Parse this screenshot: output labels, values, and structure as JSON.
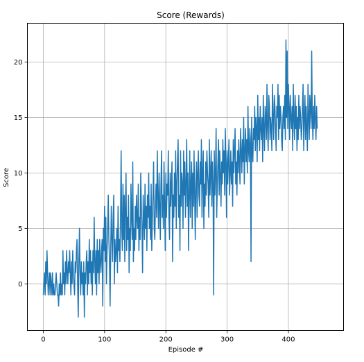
{
  "chart_data": {
    "type": "line",
    "title": "Score (Rewards)",
    "xlabel": "Episode #",
    "ylabel": "Score",
    "xlim": [
      -26,
      490
    ],
    "ylim": [
      -4.2,
      23.5
    ],
    "grid": true,
    "xticks": [
      0,
      100,
      200,
      300,
      400
    ],
    "yticks": [
      0,
      5,
      10,
      15,
      20
    ],
    "xtick_labels": [
      "0",
      "100",
      "200",
      "300",
      "400"
    ],
    "ytick_labels": [
      "0",
      "5",
      "10",
      "15",
      "20"
    ],
    "series_color": "#1f77b4",
    "series": [
      {
        "values": [
          -1,
          0,
          1,
          -1,
          2,
          0,
          3,
          1,
          -1,
          0,
          1,
          -1,
          1,
          0,
          -1,
          1,
          -1,
          0,
          -1,
          -1,
          0,
          1,
          0,
          -1,
          -1,
          -2,
          0,
          -1,
          1,
          -1,
          0,
          -1,
          3,
          0,
          1,
          -1,
          2,
          0,
          3,
          1,
          0,
          2,
          1,
          3,
          1,
          -1,
          2,
          0,
          3,
          1,
          0,
          -1,
          2,
          1,
          3,
          4,
          0,
          -3,
          2,
          5,
          1,
          -1,
          2,
          0,
          1,
          -1,
          2,
          -3,
          1,
          0,
          2,
          3,
          -1,
          2,
          0,
          4,
          1,
          3,
          0,
          2,
          -1,
          3,
          1,
          6,
          2,
          0,
          3,
          -1,
          4,
          1,
          3,
          0,
          4,
          2,
          1,
          3,
          4,
          -2,
          5,
          3,
          7,
          2,
          6,
          0,
          3,
          5,
          8,
          4,
          2,
          -2,
          3,
          7,
          4,
          2,
          6,
          8,
          0,
          4,
          2,
          3,
          5,
          1,
          7,
          3,
          4,
          2,
          6,
          12,
          5,
          3,
          9,
          4,
          8,
          2,
          7,
          10,
          3,
          6,
          4,
          8,
          1,
          5,
          3,
          9,
          6,
          4,
          11,
          2,
          5,
          3,
          7,
          4,
          8,
          6,
          5,
          9,
          3,
          6,
          4,
          10,
          7,
          5,
          1,
          8,
          6,
          4,
          9,
          5,
          7,
          3,
          8,
          6,
          10,
          5,
          7,
          4,
          9,
          3,
          6,
          8,
          11,
          5,
          4,
          7,
          9,
          6,
          12,
          8,
          5,
          10,
          7,
          4,
          9,
          12,
          6,
          8,
          5,
          11,
          7,
          3,
          10,
          6,
          9,
          8,
          12,
          6,
          4,
          10,
          7,
          9,
          11,
          2,
          8,
          6,
          10,
          7,
          12,
          5,
          9,
          11,
          13,
          6,
          8,
          3,
          12,
          7,
          10,
          9,
          5,
          12,
          8,
          11,
          6,
          9,
          13,
          7,
          10,
          3,
          8,
          12,
          6,
          9,
          11,
          5,
          10,
          7,
          12,
          8,
          4,
          9,
          11,
          6,
          10,
          12,
          8,
          7,
          11,
          9,
          13,
          6,
          10,
          12,
          5,
          9,
          7,
          11,
          8,
          12,
          10,
          9,
          6,
          13,
          8,
          10,
          12,
          7,
          11,
          9,
          -1,
          12,
          8,
          10,
          14,
          6,
          9,
          11,
          13,
          8,
          12,
          10,
          7,
          11,
          9,
          13,
          10,
          12,
          8,
          14,
          11,
          6,
          12,
          9,
          11,
          13,
          8,
          10,
          12,
          9,
          11,
          7,
          13,
          10,
          12,
          14,
          9,
          11,
          8,
          12,
          10,
          13,
          11,
          9,
          14,
          12,
          10,
          13,
          11,
          15,
          9,
          12,
          14,
          11,
          13,
          10,
          16,
          12,
          11,
          14,
          13,
          2,
          15,
          12,
          11,
          14,
          13,
          16,
          12,
          15,
          14,
          11,
          17,
          13,
          15,
          12,
          16,
          14,
          13,
          15,
          11,
          17,
          14,
          12,
          16,
          15,
          13,
          18,
          14,
          12,
          17,
          16,
          13,
          15,
          14,
          12,
          18,
          15,
          13,
          17,
          16,
          14,
          12,
          16,
          15,
          18,
          13,
          17,
          14,
          16,
          15,
          13,
          12,
          15,
          16,
          14,
          17,
          13,
          22,
          15,
          21,
          14,
          18,
          16,
          13,
          17,
          15,
          14,
          16,
          12,
          18,
          15,
          13,
          17,
          14,
          16,
          12,
          15,
          13,
          17,
          14,
          16,
          15,
          13,
          14,
          16,
          18,
          12,
          15,
          17,
          13,
          16,
          14,
          12,
          18,
          15,
          13,
          17,
          16,
          14,
          21,
          15,
          13,
          16,
          14,
          17,
          15,
          13,
          16,
          14
        ]
      }
    ]
  }
}
